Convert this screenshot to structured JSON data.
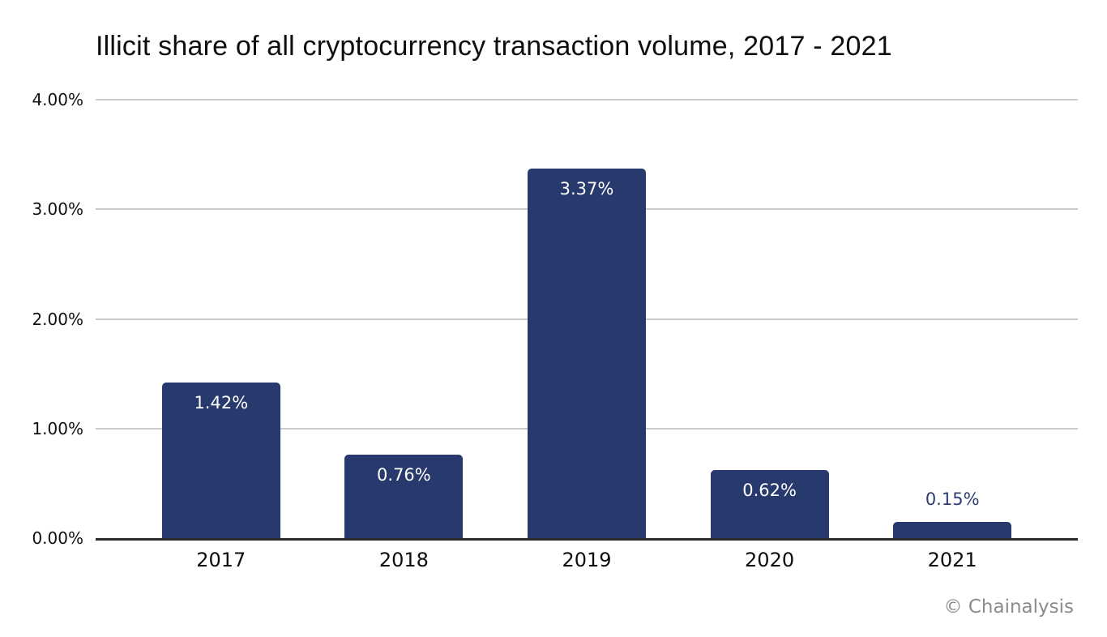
{
  "chart_data": {
    "type": "bar",
    "title": "Illicit share of all cryptocurrency transaction volume, 2017 - 2021",
    "categories": [
      "2017",
      "2018",
      "2019",
      "2020",
      "2021"
    ],
    "values": [
      1.42,
      0.76,
      3.37,
      0.62,
      0.15
    ],
    "value_labels": [
      "1.42%",
      "0.76%",
      "3.37%",
      "0.62%",
      "0.15%"
    ],
    "xlabel": "",
    "ylabel": "",
    "ylim": [
      0,
      4
    ],
    "yticks": [
      0,
      1,
      2,
      3,
      4
    ],
    "ytick_labels": [
      "0.00%",
      "1.00%",
      "2.00%",
      "3.00%",
      "4.00%"
    ],
    "grid": "horizontal-only",
    "legend": "none",
    "colors": {
      "bar": "#283A6D",
      "value_label_inside": "#FFFFFF",
      "value_label_above": "#2E3D72",
      "gridline": "#CBCBCB",
      "axis_line": "#2B2B2B",
      "title_text": "#0D0D0D",
      "tick_text": "#111111",
      "watermark_text": "#8A8B8E"
    }
  },
  "footer": {
    "text": "© Chainalysis"
  }
}
